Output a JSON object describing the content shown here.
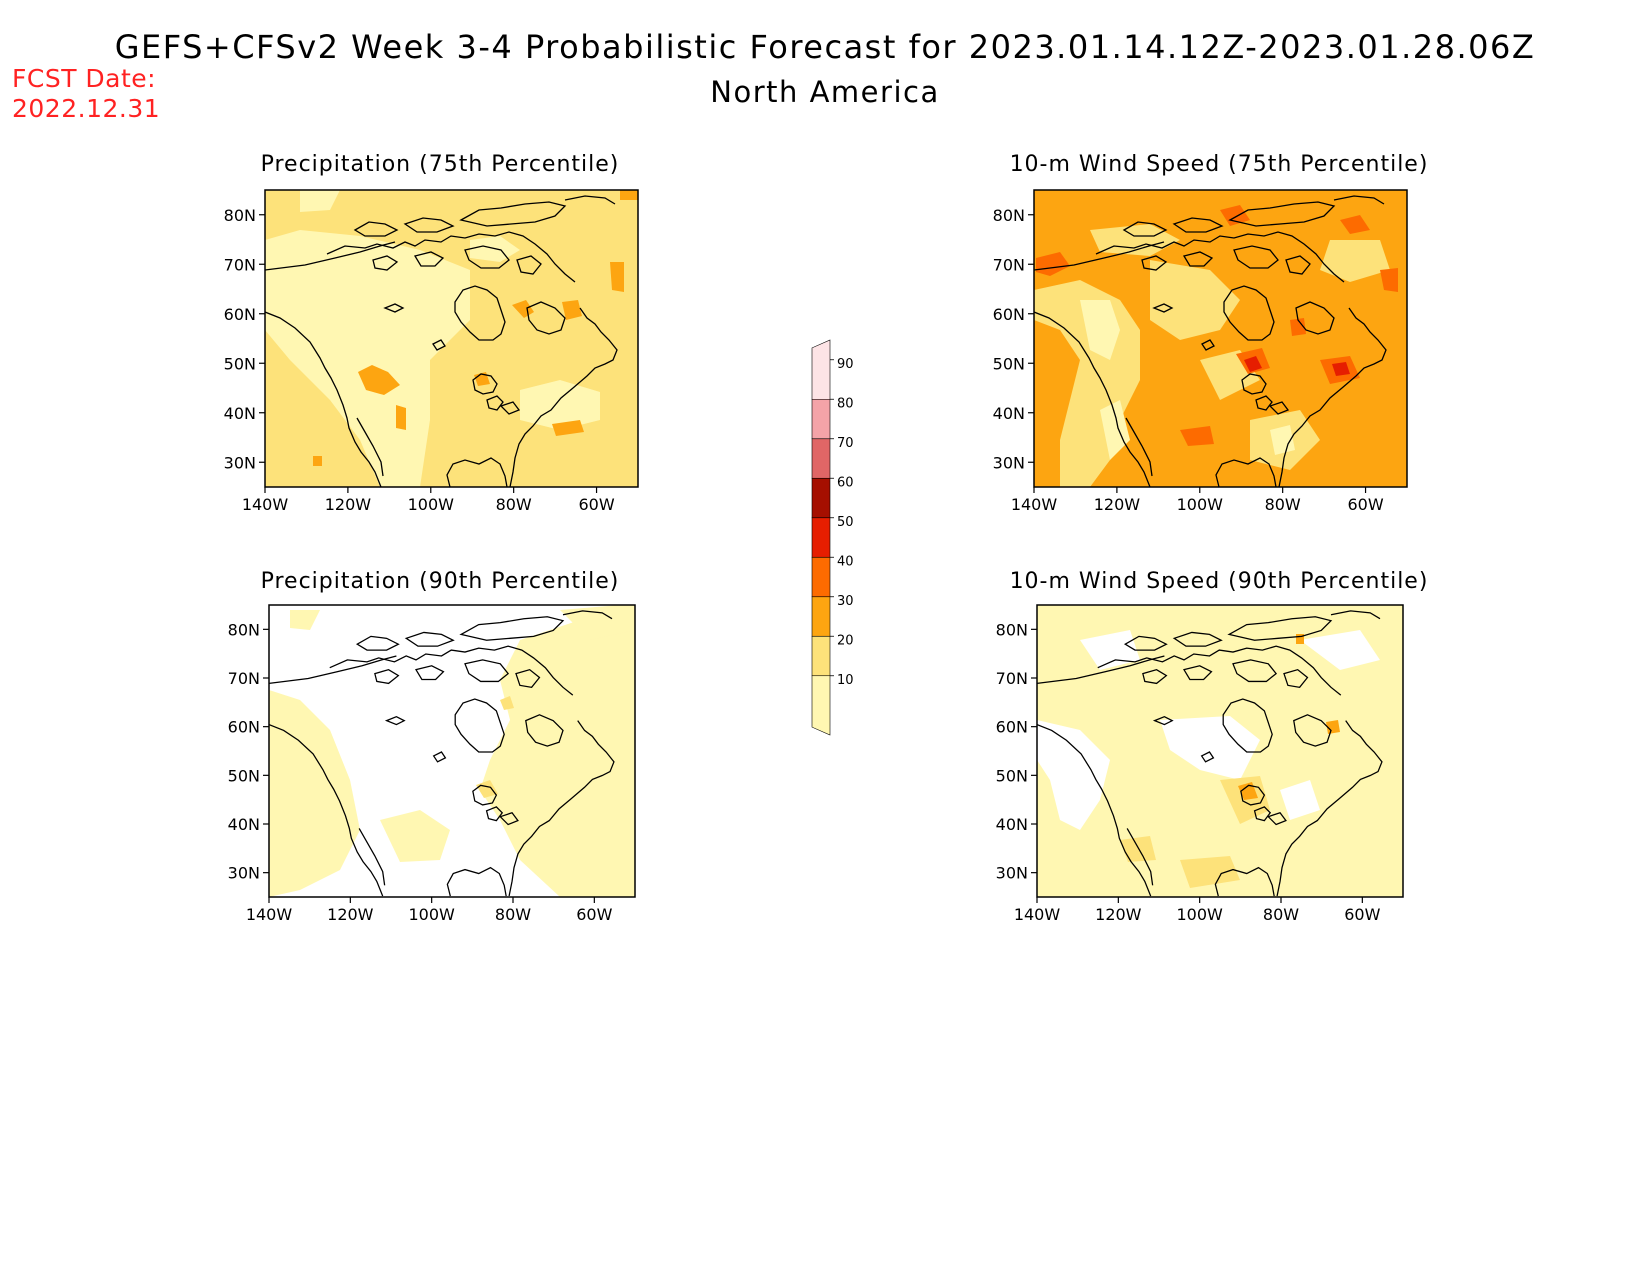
{
  "header": {
    "title": "GEFS+CFSv2 Week 3-4 Probabilistic Forecast for 2023.01.14.12Z-2023.01.28.06Z",
    "region": "North America",
    "fcst_label": "FCST Date:",
    "fcst_date": "2022.12.31"
  },
  "axes": {
    "lat_labels": [
      "80N",
      "70N",
      "60N",
      "50N",
      "40N",
      "30N"
    ],
    "lon_labels": [
      "140W",
      "120W",
      "100W",
      "80W",
      "60W"
    ]
  },
  "panels": [
    {
      "title": "Precipitation (75th Percentile)",
      "background": "#fde27a",
      "level": "moderate"
    },
    {
      "title": "10-m Wind Speed (75th Percentile)",
      "background": "#fda511",
      "level": "high"
    },
    {
      "title": "Precipitation (90th Percentile)",
      "background": "#ffffff",
      "level": "low"
    },
    {
      "title": "10-m Wind Speed (90th Percentile)",
      "background": "#fff7b2",
      "level": "low-moderate"
    }
  ],
  "colorbar": {
    "labels": [
      "10",
      "20",
      "30",
      "40",
      "50",
      "60",
      "70",
      "80",
      "90"
    ],
    "colors": [
      "#fff7b2",
      "#fde27a",
      "#fda511",
      "#fd6b00",
      "#e61e00",
      "#a50f00",
      "#e06666",
      "#f4a3a8",
      "#fde4e6"
    ]
  }
}
